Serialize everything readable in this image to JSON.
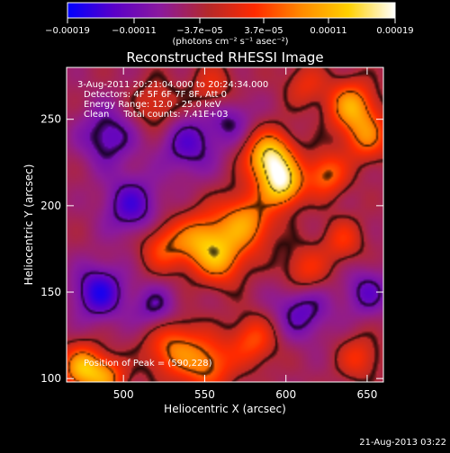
{
  "chart_data": {
    "type": "heatmap",
    "title": "Reconstructed RHESSI Image",
    "xlabel": "Heliocentric X (arcsec)",
    "ylabel": "Heliocentric Y (arcsec)",
    "xlim": [
      465,
      660
    ],
    "ylim": [
      98,
      280
    ],
    "x_ticks": [
      500,
      550,
      600,
      650
    ],
    "y_ticks": [
      100,
      150,
      200,
      250
    ],
    "colorbar": {
      "range": [
        -0.00019,
        0.00019
      ],
      "tick_labels": [
        "−0.00019",
        "−0.00011",
        "−3.7e−05",
        "3.7e−05",
        "0.00011",
        "0.00019"
      ],
      "units_line": "(photons cm⁻² s⁻¹ asec⁻²)",
      "colormap": [
        "#0000ff",
        "#5a00c8",
        "#8c1a9c",
        "#b4282a",
        "#ff2a00",
        "#ff8a00",
        "#ffd000",
        "#ffffff"
      ]
    },
    "annotations": [
      "3-Aug-2011 20:21:04.000 to 20:24:34.000",
      "Detectors: 4F 5F 6F 7F 8F, Att 0",
      "Energy Range: 12.0 - 25.0 keV",
      "Clean     Total counts: 7.41E+03",
      "Position of Peak = (590,228)"
    ],
    "footer": "21-Aug-2013 03:22",
    "grid": false,
    "sources": [
      {
        "x": 590,
        "y": 228,
        "amp": 1.0,
        "r": 10
      },
      {
        "x": 598,
        "y": 212,
        "amp": 0.9,
        "r": 9
      },
      {
        "x": 640,
        "y": 258,
        "amp": 0.7,
        "r": 10
      },
      {
        "x": 650,
        "y": 240,
        "amp": 0.55,
        "r": 10
      },
      {
        "x": 625,
        "y": 218,
        "amp": 0.55,
        "r": 9
      },
      {
        "x": 575,
        "y": 190,
        "amp": 0.7,
        "r": 12
      },
      {
        "x": 548,
        "y": 180,
        "amp": 0.65,
        "r": 11
      },
      {
        "x": 525,
        "y": 176,
        "amp": 0.45,
        "r": 10
      },
      {
        "x": 560,
        "y": 168,
        "amp": 0.55,
        "r": 10
      },
      {
        "x": 530,
        "y": 118,
        "amp": 0.55,
        "r": 12
      },
      {
        "x": 552,
        "y": 108,
        "amp": 0.55,
        "r": 11
      },
      {
        "x": 580,
        "y": 122,
        "amp": 0.45,
        "r": 10
      },
      {
        "x": 475,
        "y": 106,
        "amp": 0.8,
        "r": 9
      },
      {
        "x": 490,
        "y": 100,
        "amp": 0.55,
        "r": 8
      },
      {
        "x": 612,
        "y": 162,
        "amp": 0.4,
        "r": 10
      },
      {
        "x": 635,
        "y": 180,
        "amp": 0.35,
        "r": 9
      },
      {
        "x": 645,
        "y": 112,
        "amp": 0.35,
        "r": 9
      },
      {
        "x": 520,
        "y": 258,
        "amp": 0.3,
        "r": 10
      },
      {
        "x": 555,
        "y": 268,
        "amp": 0.3,
        "r": 10
      },
      {
        "x": 612,
        "y": 270,
        "amp": 0.3,
        "r": 9
      },
      {
        "x": 485,
        "y": 150,
        "amp": -0.55,
        "r": 11
      },
      {
        "x": 490,
        "y": 240,
        "amp": -0.4,
        "r": 12
      },
      {
        "x": 505,
        "y": 200,
        "amp": -0.45,
        "r": 12
      },
      {
        "x": 540,
        "y": 235,
        "amp": -0.4,
        "r": 12
      },
      {
        "x": 520,
        "y": 140,
        "amp": -0.35,
        "r": 10
      },
      {
        "x": 610,
        "y": 140,
        "amp": -0.4,
        "r": 12
      },
      {
        "x": 650,
        "y": 150,
        "amp": -0.35,
        "r": 10
      },
      {
        "x": 565,
        "y": 250,
        "amp": -0.3,
        "r": 10
      }
    ]
  }
}
